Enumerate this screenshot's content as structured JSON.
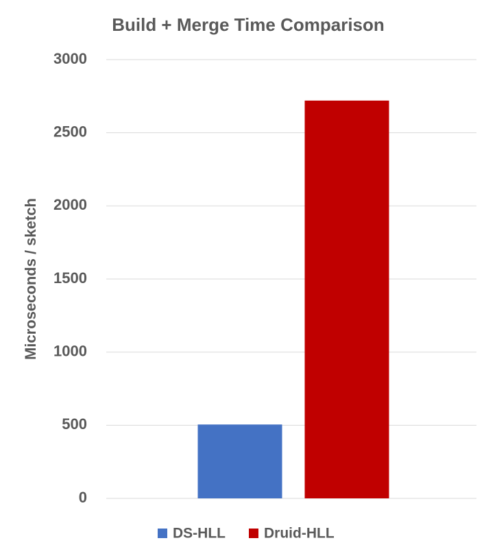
{
  "chart_data": {
    "type": "bar",
    "title": "Build + Merge Time Comparison",
    "y_label": "Microseconds / sketch",
    "categories": [
      null
    ],
    "series": [
      {
        "name": "DS-HLL",
        "color": "#4472c4",
        "values": [
          505
        ]
      },
      {
        "name": "Druid-HLL",
        "color": "#c00000",
        "values": [
          2720
        ]
      }
    ],
    "ylim": [
      0,
      3000
    ],
    "yticks": [
      0,
      500,
      1000,
      1500,
      2000,
      2500,
      3000
    ],
    "grid": true,
    "legend": "bottom"
  }
}
